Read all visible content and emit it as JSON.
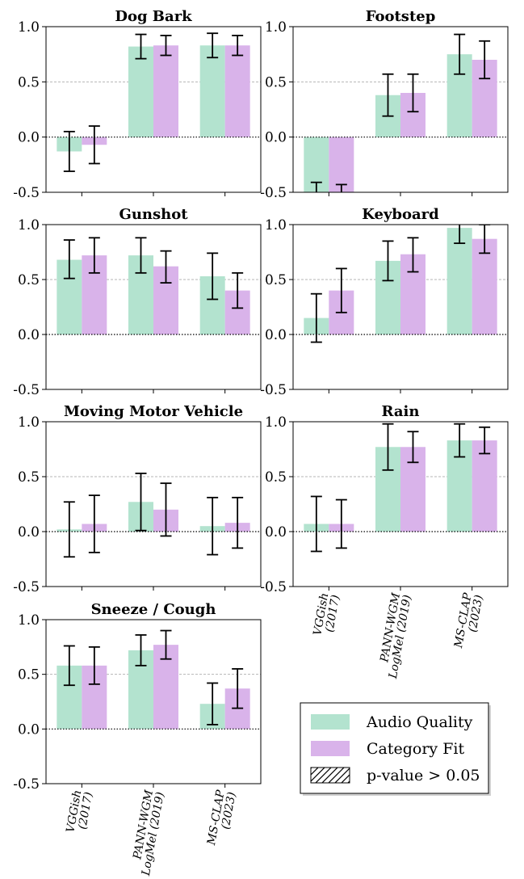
{
  "chart_data": {
    "type": "bar",
    "categories": [
      "VGGish\n(2017)",
      "PANN-WGM\nLogMel (2019)",
      "MS-CLAP\n(2023)"
    ],
    "series_names": [
      "Audio Quality",
      "Category Fit"
    ],
    "colors": {
      "Audio Quality": "#b3e3cf",
      "Category Fit": "#d9b3ea"
    },
    "ylim": [
      -0.5,
      1.0
    ],
    "yticks": [
      "1.0",
      "0.5",
      "0.0",
      "-0.5"
    ],
    "grid": "dashed at 0.5, dotted at 0.0",
    "legend_placement": "lower-right",
    "legend": [
      {
        "label": "Audio Quality",
        "kind": "swatch",
        "color": "#b3e3cf"
      },
      {
        "label": "Category Fit",
        "kind": "swatch",
        "color": "#d9b3ea"
      },
      {
        "label": "p-value > 0.05",
        "kind": "hatch",
        "color": "#ffffff"
      }
    ],
    "panels": [
      {
        "title": "Dog Bark",
        "series": [
          {
            "name": "Audio Quality",
            "values": [
              -0.13,
              0.82,
              0.83
            ],
            "err_low": [
              -0.31,
              0.71,
              0.72
            ],
            "err_high": [
              0.05,
              0.93,
              0.94
            ]
          },
          {
            "name": "Category Fit",
            "values": [
              -0.07,
              0.83,
              0.83
            ],
            "err_low": [
              -0.24,
              0.74,
              0.74
            ],
            "err_high": [
              0.1,
              0.92,
              0.92
            ]
          }
        ]
      },
      {
        "title": "Footstep",
        "series": [
          {
            "name": "Audio Quality",
            "values": [
              -0.55,
              0.38,
              0.75
            ],
            "err_low": [
              -0.65,
              0.19,
              0.57
            ],
            "err_high": [
              -0.41,
              0.57,
              0.93
            ]
          },
          {
            "name": "Category Fit",
            "values": [
              -0.55,
              0.4,
              0.7
            ],
            "err_low": [
              -0.6,
              0.23,
              0.53
            ],
            "err_high": [
              -0.43,
              0.57,
              0.87
            ]
          }
        ]
      },
      {
        "title": "Gunshot",
        "series": [
          {
            "name": "Audio Quality",
            "values": [
              0.68,
              0.72,
              0.53
            ],
            "err_low": [
              0.51,
              0.56,
              0.32
            ],
            "err_high": [
              0.86,
              0.88,
              0.74
            ]
          },
          {
            "name": "Category Fit",
            "values": [
              0.72,
              0.62,
              0.4
            ],
            "err_low": [
              0.56,
              0.47,
              0.24
            ],
            "err_high": [
              0.88,
              0.76,
              0.56
            ]
          }
        ]
      },
      {
        "title": "Keyboard",
        "series": [
          {
            "name": "Audio Quality",
            "values": [
              0.15,
              0.67,
              0.97
            ],
            "err_low": [
              -0.07,
              0.49,
              0.83
            ],
            "err_high": [
              0.37,
              0.85,
              1.03
            ]
          },
          {
            "name": "Category Fit",
            "values": [
              0.4,
              0.73,
              0.87
            ],
            "err_low": [
              0.2,
              0.57,
              0.74
            ],
            "err_high": [
              0.6,
              0.88,
              1.0
            ]
          }
        ]
      },
      {
        "title": "Moving Motor Vehicle",
        "series": [
          {
            "name": "Audio Quality",
            "values": [
              0.02,
              0.27,
              0.05
            ],
            "err_low": [
              -0.23,
              0.01,
              -0.21
            ],
            "err_high": [
              0.27,
              0.53,
              0.31
            ]
          },
          {
            "name": "Category Fit",
            "values": [
              0.07,
              0.2,
              0.08
            ],
            "err_low": [
              -0.19,
              -0.04,
              -0.15
            ],
            "err_high": [
              0.33,
              0.44,
              0.31
            ]
          }
        ]
      },
      {
        "title": "Rain",
        "series": [
          {
            "name": "Audio Quality",
            "values": [
              0.07,
              0.77,
              0.83
            ],
            "err_low": [
              -0.18,
              0.56,
              0.68
            ],
            "err_high": [
              0.32,
              0.98,
              0.98
            ]
          },
          {
            "name": "Category Fit",
            "values": [
              0.07,
              0.77,
              0.83
            ],
            "err_low": [
              -0.15,
              0.63,
              0.71
            ],
            "err_high": [
              0.29,
              0.91,
              0.95
            ]
          }
        ]
      },
      {
        "title": "Sneeze / Cough",
        "series": [
          {
            "name": "Audio Quality",
            "values": [
              0.58,
              0.72,
              0.23
            ],
            "err_low": [
              0.4,
              0.58,
              0.04
            ],
            "err_high": [
              0.76,
              0.86,
              0.42
            ]
          },
          {
            "name": "Category Fit",
            "values": [
              0.58,
              0.77,
              0.37
            ],
            "err_low": [
              0.41,
              0.64,
              0.19
            ],
            "err_high": [
              0.75,
              0.9,
              0.55
            ]
          }
        ]
      }
    ]
  }
}
